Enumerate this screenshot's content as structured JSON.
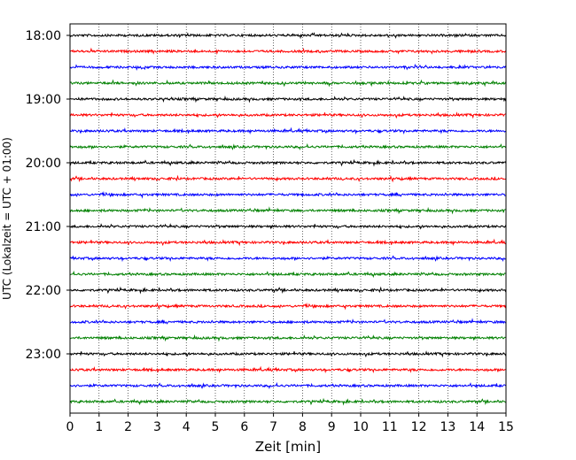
{
  "chart_data": {
    "type": "line",
    "title": "",
    "xlabel": "Zeit  [min]",
    "ylabel": "UTC (Lokalzeit = UTC + 01:00)",
    "xlim": [
      0,
      15
    ],
    "x_ticks": [
      "0",
      "1",
      "2",
      "3",
      "4",
      "5",
      "6",
      "7",
      "8",
      "9",
      "10",
      "11",
      "12",
      "13",
      "14",
      "15"
    ],
    "y_ticks": [
      "18:00",
      "19:00",
      "20:00",
      "21:00",
      "22:00",
      "23:00"
    ],
    "grid": "vertical dotted at each minute",
    "trace_interval_minutes": 15,
    "trace_start": "18:00",
    "trace_end": "23:45",
    "trace_count": 24,
    "trace_colors": [
      "#000000",
      "#ff0000",
      "#0000ff",
      "#008000"
    ]
  }
}
